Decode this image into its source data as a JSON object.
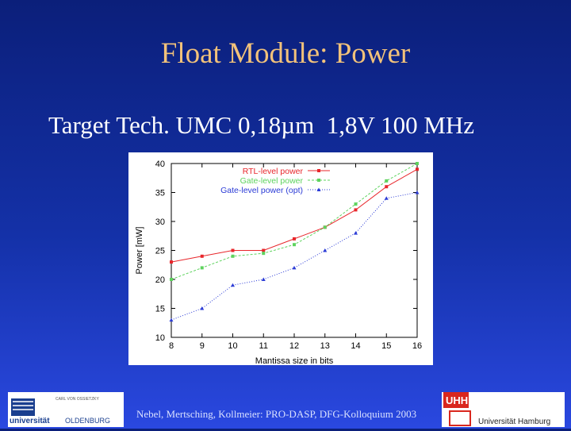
{
  "slide": {
    "title": "Float Module: Power",
    "subtitle": "Target Tech. UMC 0,18µm  1,8V 100 MHz",
    "footer": "Nebel, Mertsching, Kollmeier: PRO-DASP, DFG-Kolloquium 2003"
  },
  "logos": {
    "left": {
      "text_main": "universität",
      "text_city": "OLDENBURG",
      "text_small": "CARL VON OSSIETZKY"
    },
    "right": {
      "text_mark": "UHH",
      "text_name": "Universität Hamburg"
    }
  },
  "chart_data": {
    "type": "line",
    "xlabel": "Mantissa size in bits",
    "ylabel": "Power [mW]",
    "x": [
      8,
      9,
      10,
      11,
      12,
      13,
      14,
      15,
      16
    ],
    "xlim": [
      8,
      16
    ],
    "ylim": [
      10,
      40
    ],
    "xticks": [
      "8",
      "9",
      "10",
      "11",
      "12",
      "13",
      "14",
      "15",
      "16"
    ],
    "yticks": [
      "10",
      "15",
      "20",
      "25",
      "30",
      "35",
      "40"
    ],
    "grid": false,
    "legend_position": "top-left",
    "series": [
      {
        "name": "RTL-level power",
        "color": "#e8262b",
        "marker": "square",
        "dash": "",
        "values": [
          23,
          24,
          25,
          25,
          27,
          29,
          32,
          36,
          39
        ]
      },
      {
        "name": "Gate-level power",
        "color": "#5ed35e",
        "marker": "square",
        "dash": "3,2",
        "values": [
          20,
          22,
          24,
          24.5,
          26,
          29,
          33,
          37,
          40
        ]
      },
      {
        "name": "Gate-level power (opt)",
        "color": "#2b3bd6",
        "marker": "triangle",
        "dash": "1,2",
        "values": [
          13,
          15,
          19,
          20,
          22,
          25,
          28,
          34,
          35
        ]
      }
    ]
  }
}
